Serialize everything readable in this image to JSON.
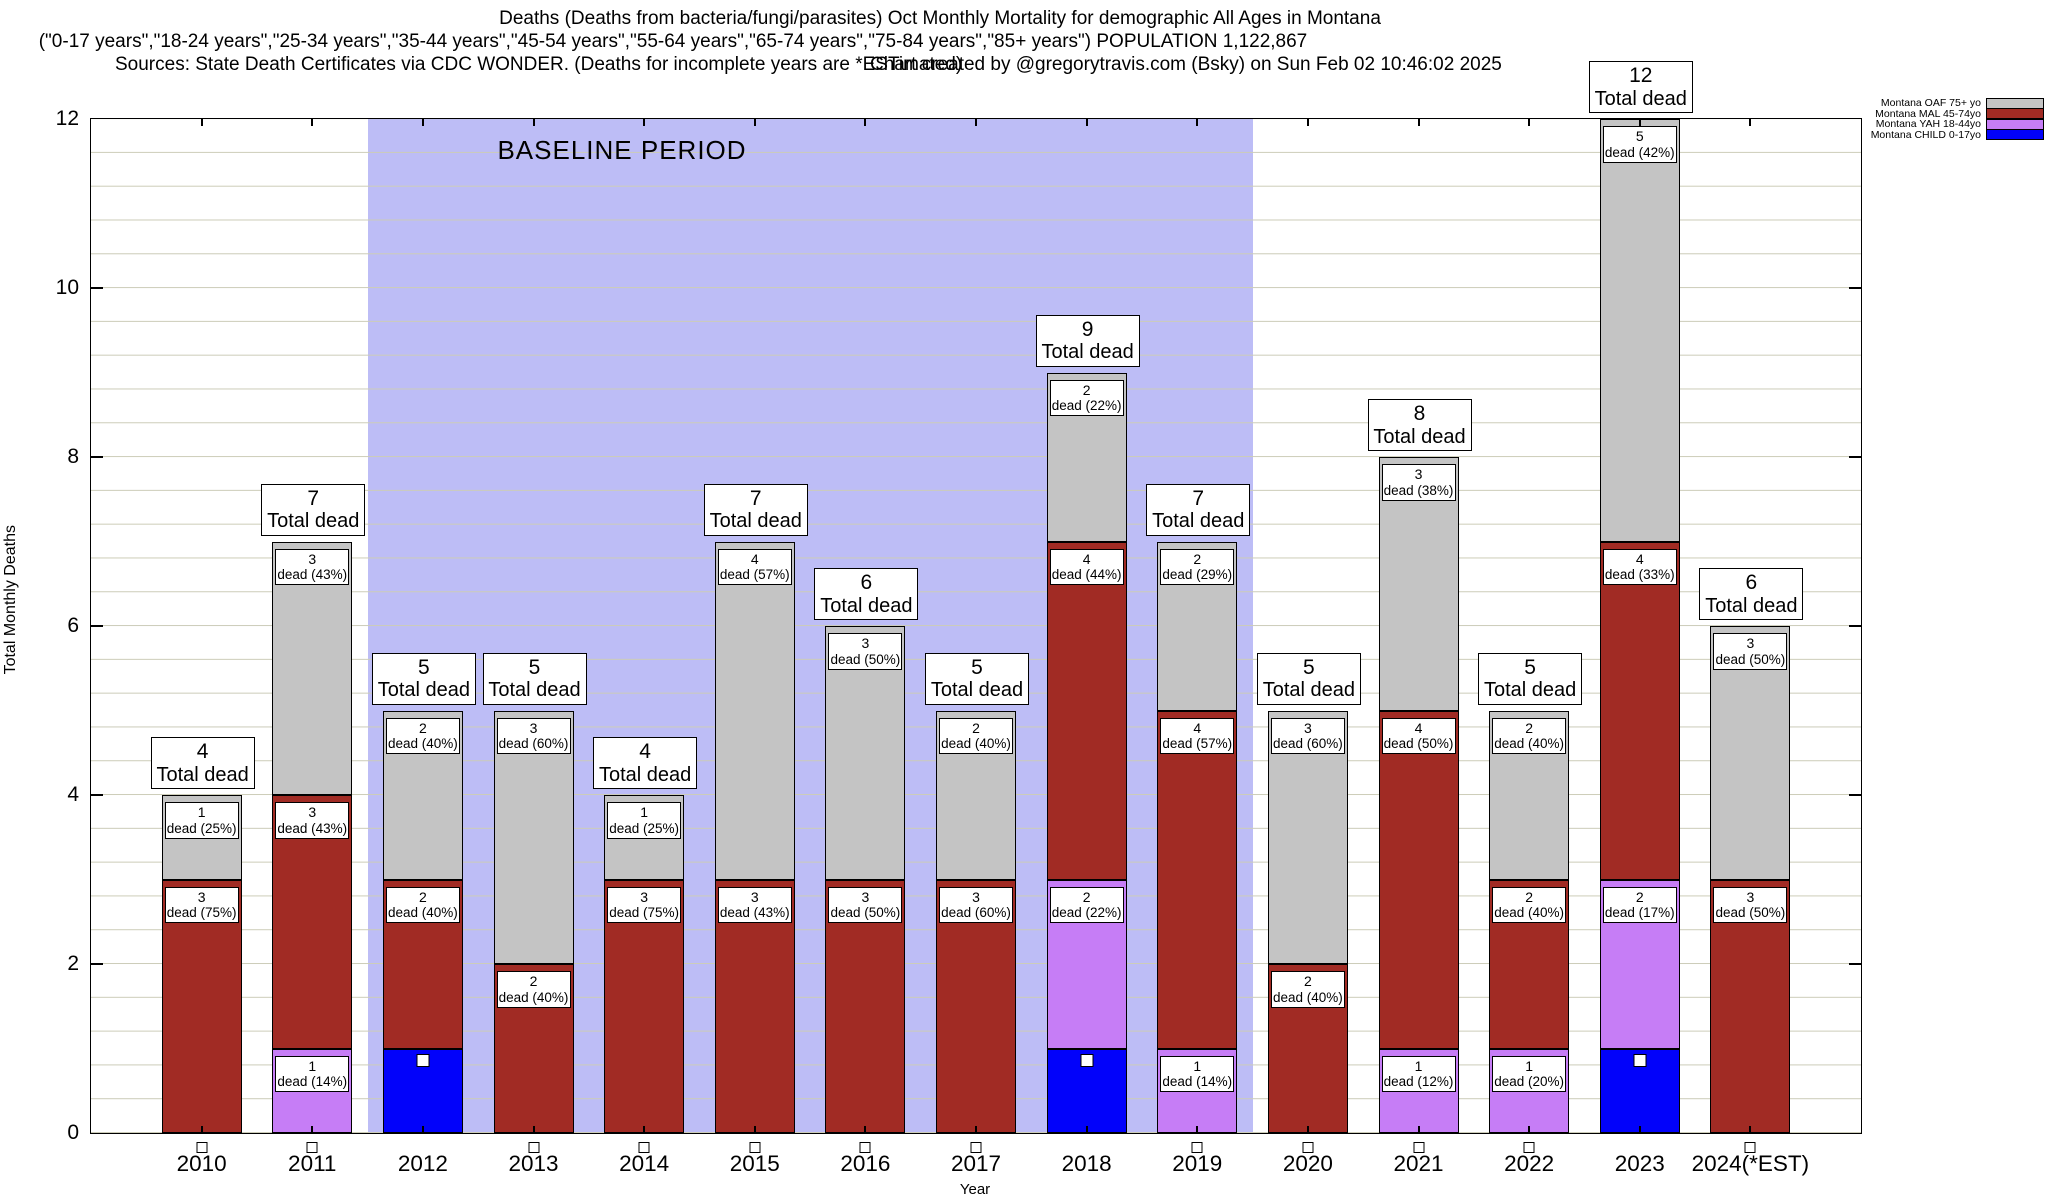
{
  "header": {
    "title_line1": "Deaths (Deaths from bacteria/fungi/parasites) Oct Monthly Mortality for demographic All Ages in Montana",
    "title_line2": "(\"0-17 years\",\"18-24 years\",\"25-34 years\",\"35-44 years\",\"45-54 years\",\"55-64 years\",\"65-74 years\",\"75-84 years\",\"85+ years\") POPULATION 1,122,867",
    "sources": "Sources: State Death Certificates via CDC WONDER. (Deaths for incomplete years are *ESTimated)",
    "credit": "Chart created by @gregorytravis.com (Bsky) on Sun Feb 02 10:46:02 2025"
  },
  "chart_data": {
    "type": "bar",
    "stacked": true,
    "title": "Deaths (Deaths from bacteria/fungi/parasites) Oct Monthly Mortality for demographic All Ages in Montana",
    "xlabel": "Year",
    "ylabel": "Total Monthly Deaths",
    "ylim": [
      0,
      12
    ],
    "x_range": [
      2009,
      2025
    ],
    "y_major_ticks": [
      0,
      2,
      4,
      6,
      8,
      10,
      12
    ],
    "grid_minor_step": 0.4,
    "grid": true,
    "legend_position": "top-right",
    "total_label_word": "Total dead",
    "segment_label_word": "dead",
    "baseline": {
      "label": "BASELINE PERIOD",
      "start_year": 2011.5,
      "end_year": 2019.5
    },
    "colors": {
      "oaf": "#c4c4c4",
      "mal": "#a12b24",
      "yah": "#c67df6",
      "child": "#0202fa",
      "baseline_fill": "#bdbdf6",
      "grid_line": "#ccccb8"
    },
    "legend": [
      {
        "key": "oaf",
        "label": "Montana OAF 75+ yo"
      },
      {
        "key": "mal",
        "label": "Montana MAL 45-74yo"
      },
      {
        "key": "yah",
        "label": "Montana YAH 18-44yo"
      },
      {
        "key": "child",
        "label": "Montana CHILD 0-17yo"
      }
    ],
    "categories": [
      "2010",
      "2011",
      "2012",
      "2013",
      "2014",
      "2015",
      "2016",
      "2017",
      "2018",
      "2019",
      "2020",
      "2021",
      "2022",
      "2023",
      "2024(*EST)"
    ],
    "bars": [
      {
        "year": "2010",
        "total": 4,
        "segments": [
          {
            "key": "mal",
            "value": 3,
            "pct": "75%"
          },
          {
            "key": "oaf",
            "value": 1,
            "pct": "25%"
          }
        ]
      },
      {
        "year": "2011",
        "total": 7,
        "segments": [
          {
            "key": "yah",
            "value": 1,
            "pct": "14%"
          },
          {
            "key": "mal",
            "value": 3,
            "pct": "43%"
          },
          {
            "key": "oaf",
            "value": 3,
            "pct": "43%"
          }
        ]
      },
      {
        "year": "2012",
        "total": 5,
        "segments": [
          {
            "key": "child",
            "value": 1
          },
          {
            "key": "mal",
            "value": 2,
            "pct": "40%"
          },
          {
            "key": "oaf",
            "value": 2,
            "pct": "40%"
          }
        ]
      },
      {
        "year": "2013",
        "total": 5,
        "segments": [
          {
            "key": "mal",
            "value": 2,
            "pct": "40%"
          },
          {
            "key": "oaf",
            "value": 3,
            "pct": "60%"
          }
        ]
      },
      {
        "year": "2014",
        "total": 4,
        "segments": [
          {
            "key": "mal",
            "value": 3,
            "pct": "75%"
          },
          {
            "key": "oaf",
            "value": 1,
            "pct": "25%"
          }
        ]
      },
      {
        "year": "2015",
        "total": 7,
        "segments": [
          {
            "key": "mal",
            "value": 3,
            "pct": "43%"
          },
          {
            "key": "oaf",
            "value": 4,
            "pct": "57%"
          }
        ]
      },
      {
        "year": "2016",
        "total": 6,
        "segments": [
          {
            "key": "mal",
            "value": 3,
            "pct": "50%"
          },
          {
            "key": "oaf",
            "value": 3,
            "pct": "50%"
          }
        ]
      },
      {
        "year": "2017",
        "total": 5,
        "segments": [
          {
            "key": "mal",
            "value": 3,
            "pct": "60%"
          },
          {
            "key": "oaf",
            "value": 2,
            "pct": "40%"
          }
        ]
      },
      {
        "year": "2018",
        "total": 9,
        "segments": [
          {
            "key": "child",
            "value": 1
          },
          {
            "key": "yah",
            "value": 2,
            "pct": "22%"
          },
          {
            "key": "mal",
            "value": 4,
            "pct": "44%"
          },
          {
            "key": "oaf",
            "value": 2,
            "pct": "22%"
          }
        ]
      },
      {
        "year": "2019",
        "total": 7,
        "segments": [
          {
            "key": "yah",
            "value": 1,
            "pct": "14%"
          },
          {
            "key": "mal",
            "value": 4,
            "pct": "57%"
          },
          {
            "key": "oaf",
            "value": 2,
            "pct": "29%"
          }
        ]
      },
      {
        "year": "2020",
        "total": 5,
        "segments": [
          {
            "key": "mal",
            "value": 2,
            "pct": "40%"
          },
          {
            "key": "oaf",
            "value": 3,
            "pct": "60%"
          }
        ]
      },
      {
        "year": "2021",
        "total": 8,
        "segments": [
          {
            "key": "yah",
            "value": 1,
            "pct": "12%"
          },
          {
            "key": "mal",
            "value": 4,
            "pct": "50%"
          },
          {
            "key": "oaf",
            "value": 3,
            "pct": "38%"
          }
        ]
      },
      {
        "year": "2022",
        "total": 5,
        "segments": [
          {
            "key": "yah",
            "value": 1,
            "pct": "20%"
          },
          {
            "key": "mal",
            "value": 2,
            "pct": "40%"
          },
          {
            "key": "oaf",
            "value": 2,
            "pct": "40%"
          }
        ]
      },
      {
        "year": "2023",
        "total": 12,
        "segments": [
          {
            "key": "child",
            "value": 1
          },
          {
            "key": "yah",
            "value": 2,
            "pct": "17%"
          },
          {
            "key": "mal",
            "value": 4,
            "pct": "33%"
          },
          {
            "key": "oaf",
            "value": 5,
            "pct": "42%"
          }
        ]
      },
      {
        "year": "2024(*EST)",
        "total": 6,
        "segments": [
          {
            "key": "mal",
            "value": 3,
            "pct": "50%"
          },
          {
            "key": "oaf",
            "value": 3,
            "pct": "50%"
          }
        ]
      }
    ]
  }
}
